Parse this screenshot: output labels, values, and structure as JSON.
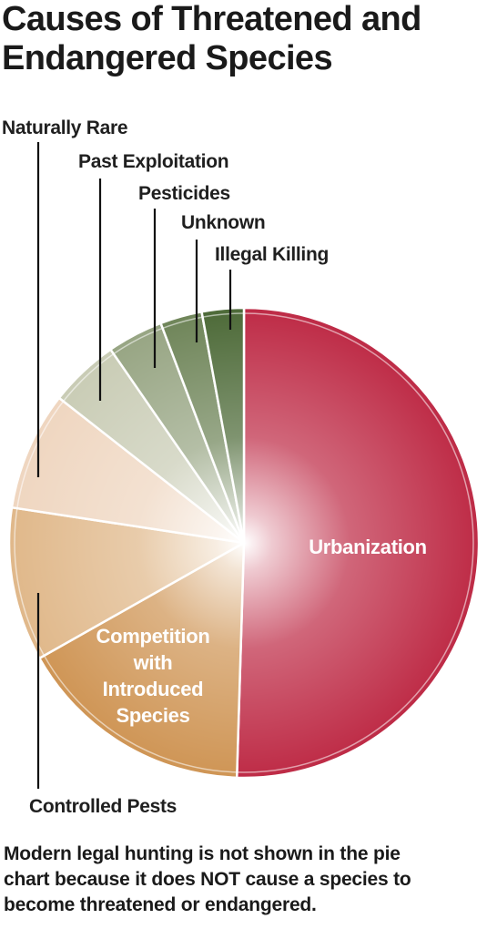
{
  "chart_data": {
    "type": "pie",
    "title_lines": [
      "Causes of Threatened and",
      "Endangered Species"
    ],
    "categories": [
      "Urbanization",
      "Competition with Introduced Species",
      "Controlled Pests",
      "Naturally Rare",
      "Past Exploitation",
      "Pesticides",
      "Unknown",
      "Illegal Killing"
    ],
    "values": [
      52.5,
      17,
      11,
      8.5,
      5,
      4,
      3,
      3
    ],
    "unit": "percent",
    "slices": [
      {
        "name": "Urbanization",
        "value": 52.5,
        "color": "#be2b46",
        "label_lines": [
          "Urbanization"
        ],
        "label_position": "inside"
      },
      {
        "name": "Competition with Introduced Species",
        "value": 17,
        "color": "#cf9555",
        "label_lines": [
          "Competition",
          "with",
          "Introduced",
          "Species"
        ],
        "label_position": "inside"
      },
      {
        "name": "Controlled Pests",
        "value": 11,
        "color": "#e0b88a",
        "label_lines": [
          "Controlled Pests"
        ],
        "label_position": "outside"
      },
      {
        "name": "Naturally Rare",
        "value": 8.5,
        "color": "#efd6c0",
        "label_lines": [
          "Naturally Rare"
        ],
        "label_position": "outside"
      },
      {
        "name": "Past Exploitation",
        "value": 5,
        "color": "#c9ccb5",
        "label_lines": [
          "Past Exploitation"
        ],
        "label_position": "outside"
      },
      {
        "name": "Pesticides",
        "value": 4,
        "color": "#97a583",
        "label_lines": [
          "Pesticides"
        ],
        "label_position": "outside"
      },
      {
        "name": "Unknown",
        "value": 3,
        "color": "#6f8559",
        "label_lines": [
          "Unknown"
        ],
        "label_position": "outside"
      },
      {
        "name": "Illegal Killing",
        "value": 3,
        "color": "#4d6a38",
        "label_lines": [
          "Illegal Killing"
        ],
        "label_position": "outside"
      }
    ],
    "footnote_lines": [
      "Modern legal hunting is not shown in the pie",
      "chart because it does NOT cause a species to",
      "become threatened or endangered."
    ]
  }
}
